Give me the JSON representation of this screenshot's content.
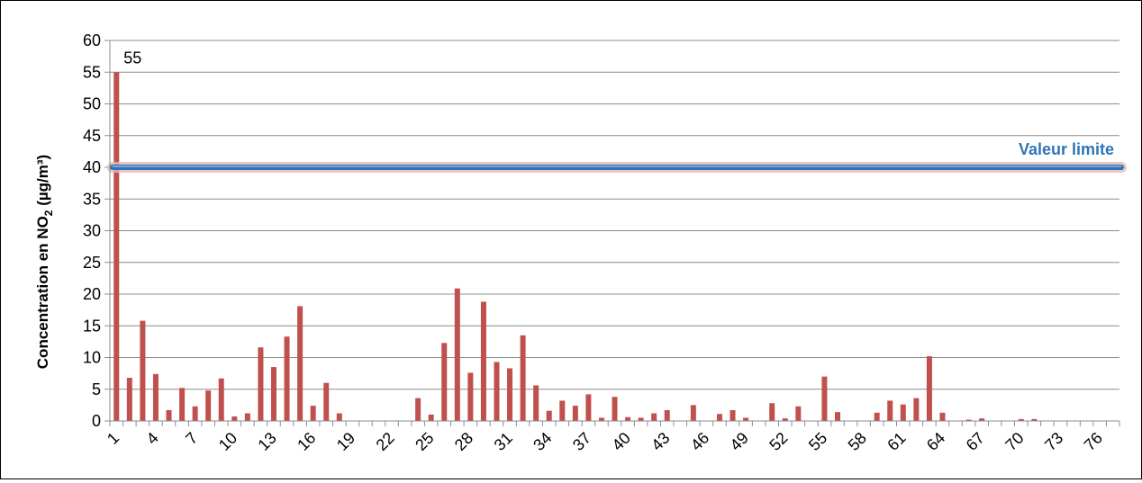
{
  "chart_data": {
    "type": "bar",
    "ylabel": "Concentration en NO",
    "ylabel_sub": "2",
    "ylabel_unit": " (µg/m³)",
    "ylim": [
      0,
      60
    ],
    "yticks": [
      0,
      5,
      10,
      15,
      20,
      25,
      30,
      35,
      40,
      45,
      50,
      55,
      60
    ],
    "categories": [
      1,
      2,
      3,
      4,
      5,
      6,
      7,
      8,
      9,
      10,
      11,
      12,
      13,
      14,
      15,
      16,
      17,
      18,
      19,
      20,
      21,
      22,
      23,
      24,
      25,
      26,
      27,
      28,
      29,
      30,
      31,
      32,
      33,
      34,
      35,
      36,
      37,
      38,
      39,
      40,
      41,
      42,
      43,
      44,
      45,
      46,
      47,
      48,
      49,
      50,
      51,
      52,
      53,
      54,
      55,
      56,
      57,
      58,
      59,
      60,
      61,
      62,
      63,
      64,
      65,
      66,
      67,
      68,
      69,
      70,
      71,
      72,
      73,
      74,
      75,
      76,
      77
    ],
    "xtick_labels": [
      1,
      4,
      7,
      10,
      13,
      16,
      19,
      22,
      25,
      28,
      31,
      34,
      37,
      40,
      43,
      46,
      49,
      52,
      55,
      58,
      61,
      64,
      67,
      70,
      73,
      76
    ],
    "values": [
      55,
      6.8,
      15.8,
      7.4,
      1.7,
      5.2,
      2.3,
      4.8,
      6.7,
      0.7,
      1.2,
      11.6,
      8.5,
      13.3,
      18.1,
      2.4,
      6,
      1.2,
      0,
      0,
      0,
      0,
      0,
      3.6,
      1,
      12.3,
      20.9,
      7.6,
      18.8,
      9.3,
      8.3,
      13.5,
      5.6,
      1.6,
      3.2,
      2.4,
      4.2,
      0.5,
      3.8,
      0.6,
      0.5,
      1.2,
      1.7,
      0,
      2.5,
      0,
      1.1,
      1.7,
      0.5,
      0,
      2.8,
      0.4,
      2.3,
      0,
      7,
      1.4,
      0,
      0,
      1.3,
      3.2,
      2.6,
      3.6,
      10.2,
      1.3,
      0,
      0.2,
      0.4,
      0,
      0,
      0.3,
      0.3,
      0,
      0,
      0,
      0,
      0,
      0
    ],
    "bar_color": "#C0504D",
    "data_label": {
      "index": 0,
      "text": "55"
    },
    "reference_line": {
      "value": 40,
      "label": "Valeur limite",
      "color": "#2E75B6"
    },
    "grid": true,
    "legend": "none"
  }
}
